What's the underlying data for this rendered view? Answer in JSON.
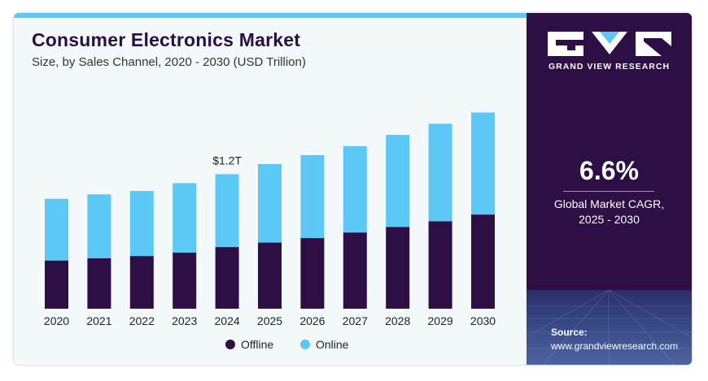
{
  "header": {
    "title": "Consumer Electronics Market",
    "subtitle": "Size, by Sales Channel, 2020 - 2030 (USD Trillion)"
  },
  "sidebar": {
    "brand": "GRAND VIEW RESEARCH",
    "cagr_value": "6.6%",
    "cagr_label_line1": "Global Market CAGR,",
    "cagr_label_line2": "2025 - 2030",
    "source_title": "Source:",
    "source_url": "www.grandviewresearch.com"
  },
  "colors": {
    "offline": "#2d0e45",
    "online": "#5bc8f5",
    "sidebar": "#2d0e45",
    "accent_bar": "#5bc8f5"
  },
  "chart_data": {
    "type": "bar",
    "stacked": true,
    "categories": [
      "2020",
      "2021",
      "2022",
      "2023",
      "2024",
      "2025",
      "2026",
      "2027",
      "2028",
      "2029",
      "2030"
    ],
    "series": [
      {
        "name": "Offline",
        "values": [
          0.43,
          0.45,
          0.47,
          0.5,
          0.55,
          0.59,
          0.63,
          0.68,
          0.73,
          0.78,
          0.84
        ]
      },
      {
        "name": "Online",
        "values": [
          0.55,
          0.57,
          0.58,
          0.62,
          0.65,
          0.7,
          0.74,
          0.77,
          0.82,
          0.87,
          0.91
        ]
      }
    ],
    "annotations": [
      {
        "category": "2024",
        "text": "$1.2T"
      }
    ],
    "legend": {
      "placement": "bottom-center",
      "entries": [
        "Offline",
        "Online"
      ]
    },
    "ylim": [
      0,
      2.0
    ],
    "grid": false
  }
}
